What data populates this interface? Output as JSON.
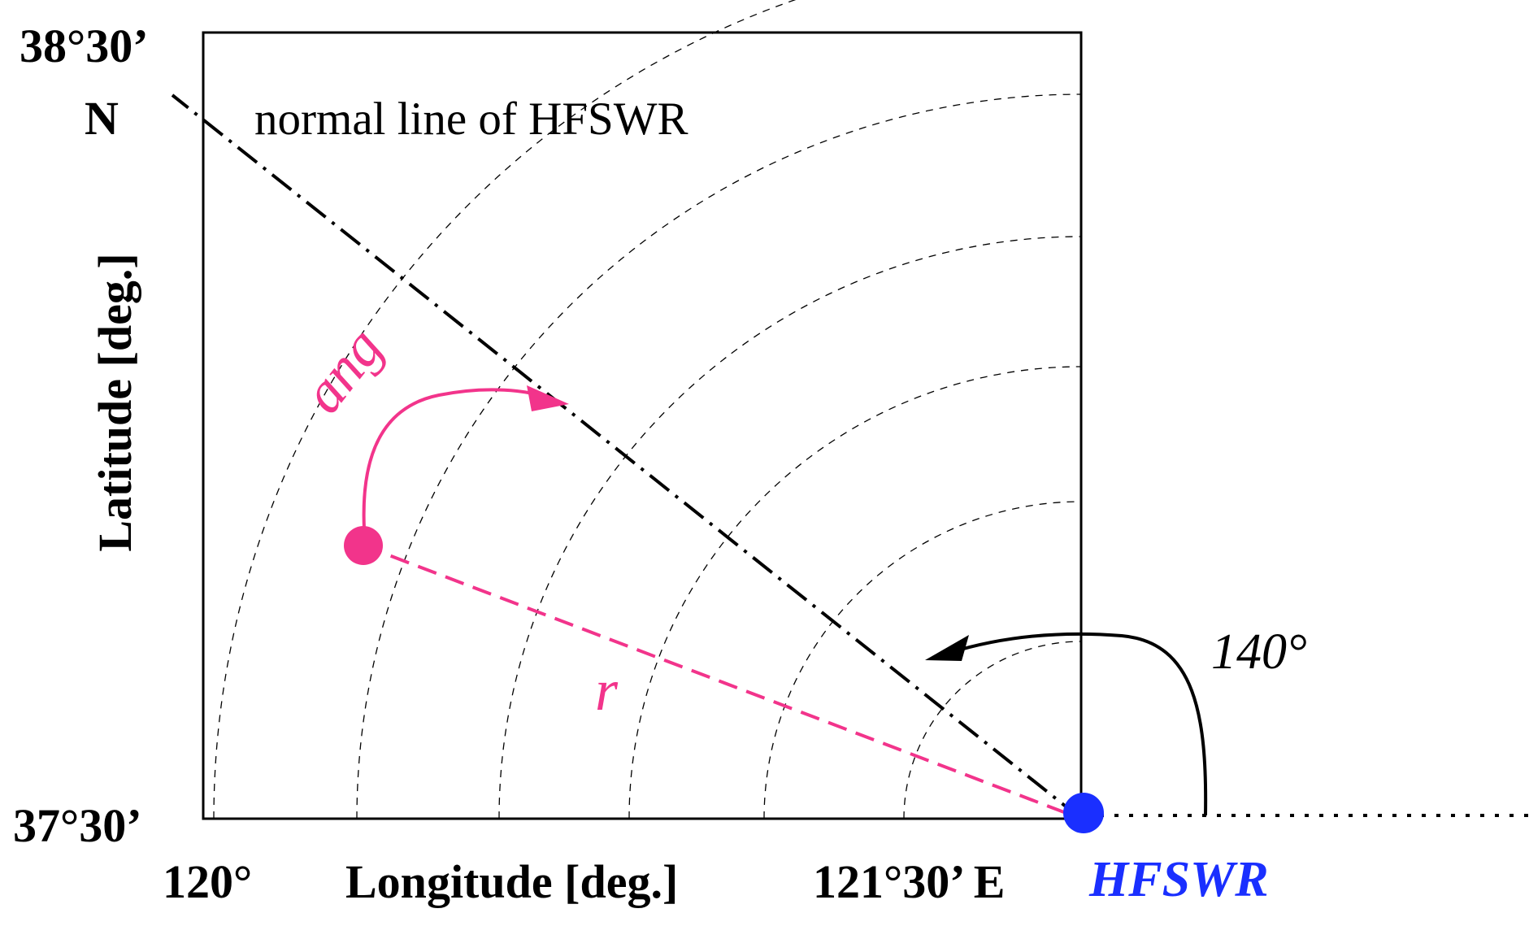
{
  "axes": {
    "y_top": "38°30’",
    "y_bottom": "37°30’",
    "y_north": "N",
    "y_label": "Latitude [deg.]",
    "x_left": "120°",
    "x_label": "Longitude [deg.]",
    "x_right": "121°30’ E"
  },
  "annotations": {
    "normal_line": "normal line of HFSWR",
    "ang": "ang",
    "r": "r",
    "angle_140": "140°",
    "radar": "HFSWR"
  },
  "colors": {
    "pink": "#f2348b",
    "blue": "#1a2fff",
    "black": "#000000"
  }
}
